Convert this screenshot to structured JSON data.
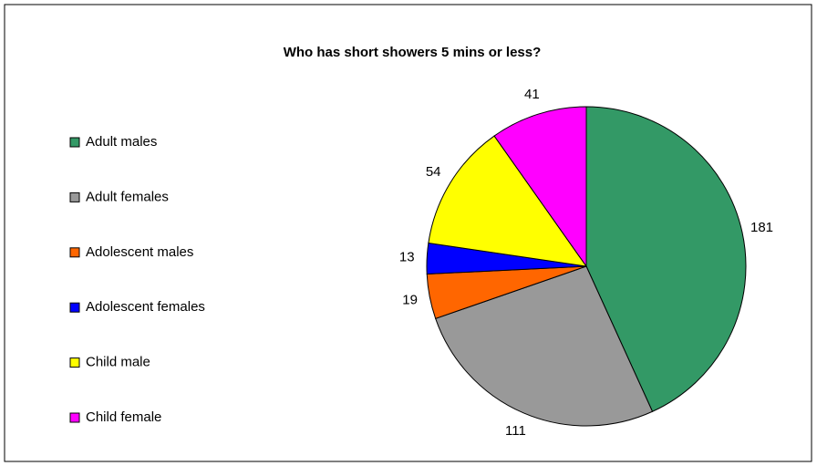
{
  "chart_data": {
    "type": "pie",
    "title": "Who has short showers 5 mins or less?",
    "categories": [
      "Adult males",
      "Adult females",
      "Adolescent males",
      "Adolescent females",
      "Child male",
      "Child female"
    ],
    "values": [
      181,
      111,
      19,
      13,
      54,
      41
    ],
    "colors": [
      "#339966",
      "#999999",
      "#ff6600",
      "#0000ff",
      "#ffff00",
      "#ff00ff"
    ],
    "legend": "left"
  }
}
